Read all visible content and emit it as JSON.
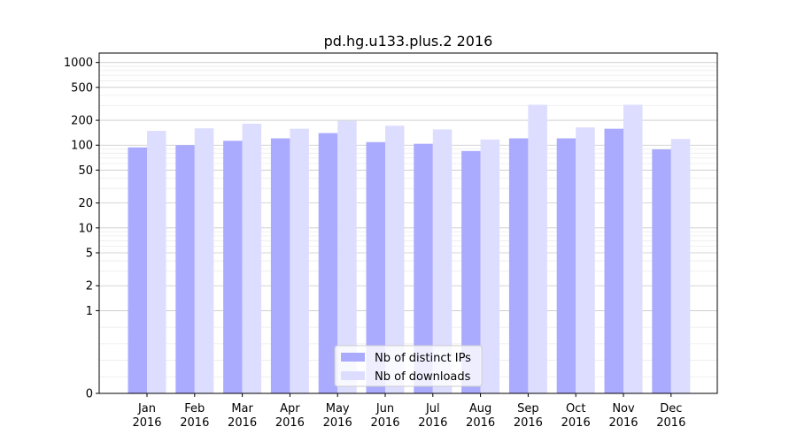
{
  "chart_data": {
    "type": "bar",
    "title": "pd.hg.u133.plus.2 2016",
    "xlabel": "",
    "ylabel": "",
    "yscale": "symlog",
    "ylim": [
      0,
      1300
    ],
    "grid": true,
    "legend_position": "bottom-center",
    "yticks": [
      0,
      1,
      2,
      5,
      10,
      20,
      50,
      100,
      200,
      500,
      1000
    ],
    "categories": [
      "Jan\n2016",
      "Feb\n2016",
      "Mar\n2016",
      "Apr\n2016",
      "May\n2016",
      "Jun\n2016",
      "Jul\n2016",
      "Aug\n2016",
      "Sep\n2016",
      "Oct\n2016",
      "Nov\n2016",
      "Dec\n2016"
    ],
    "series": [
      {
        "name": "Nb of distinct IPs",
        "color": "#aaaaff",
        "values": [
          94,
          100,
          113,
          121,
          140,
          109,
          104,
          85,
          121,
          121,
          158,
          89
        ]
      },
      {
        "name": "Nb of downloads",
        "color": "#ddddff",
        "values": [
          149,
          160,
          182,
          158,
          197,
          172,
          155,
          117,
          308,
          164,
          308,
          119
        ]
      }
    ]
  }
}
